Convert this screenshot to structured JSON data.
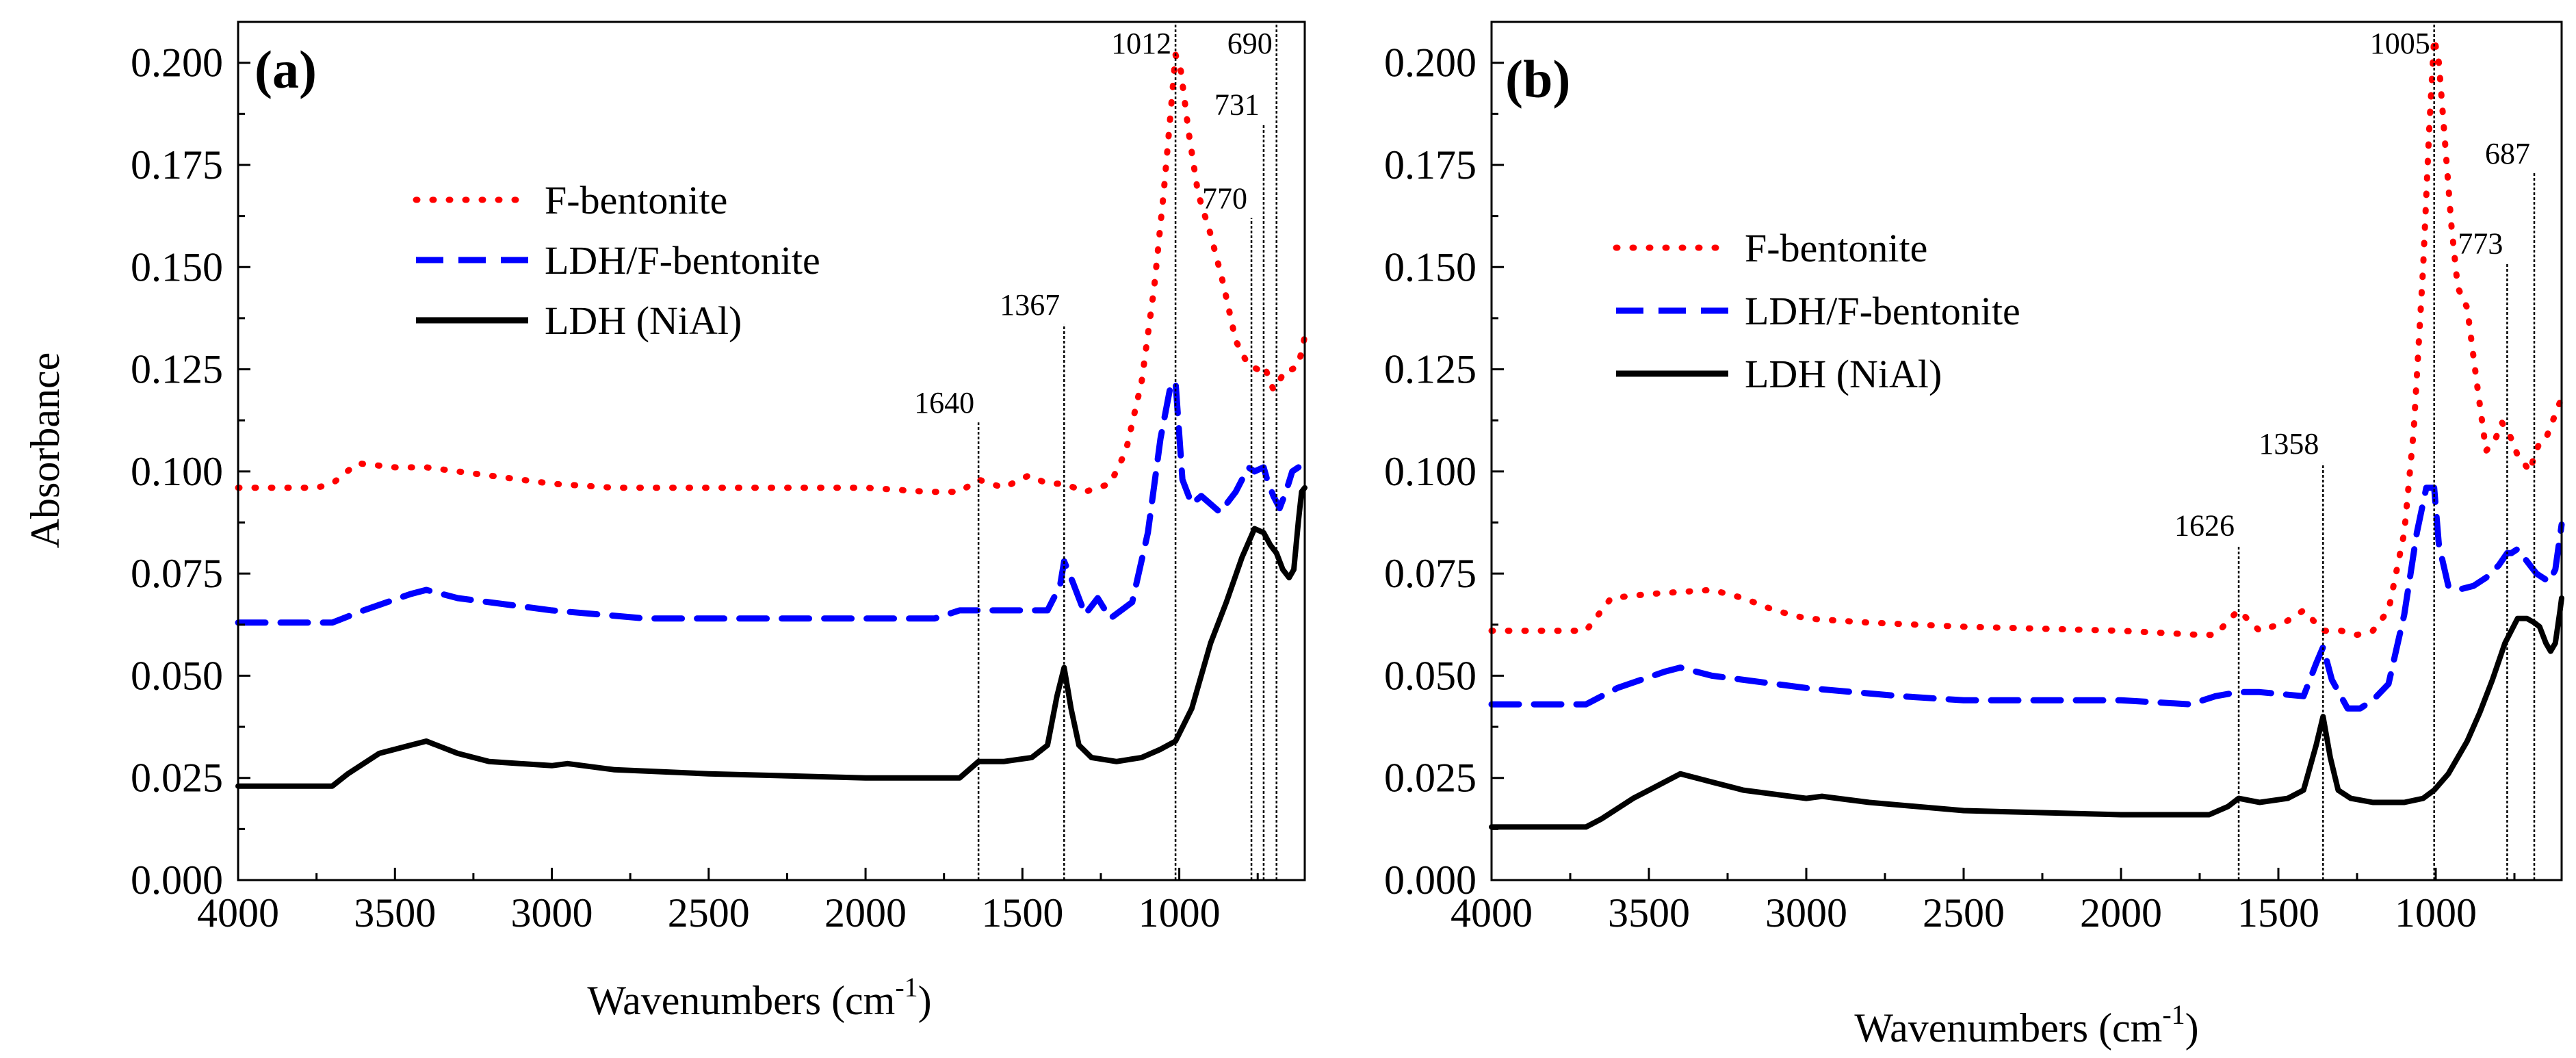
{
  "shared": {
    "y_label": "Absorbance",
    "x_label_main": "Wavenumbers (cm",
    "x_label_sup": "-1",
    "x_label_end": ")",
    "x_ticks": [
      "4000",
      "3500",
      "3000",
      "2500",
      "2000",
      "1500",
      "1000"
    ],
    "y_ticks": [
      "0.000",
      "0.025",
      "0.050",
      "0.075",
      "0.100",
      "0.125",
      "0.150",
      "0.175",
      "0.200"
    ],
    "legend": [
      {
        "label": "F-bentonite",
        "color": "#ff0000",
        "style": "dotted"
      },
      {
        "label": "LDH/F-bentonite",
        "color": "#0000ff",
        "style": "dashed"
      },
      {
        "label": "LDH (NiAl)",
        "color": "#000000",
        "style": "solid"
      }
    ]
  },
  "chart_data": [
    {
      "type": "line",
      "panel": "(a)",
      "xlabel": "Wavenumbers (cm-1)",
      "ylabel": "Absorbance",
      "xlim": [
        4000,
        600
      ],
      "ylim": [
        0,
        0.21
      ],
      "series": [
        {
          "name": "F-bentonite",
          "color": "#ff0000",
          "style": "dotted",
          "x": [
            4000,
            3750,
            3700,
            3620,
            3500,
            3400,
            3300,
            3200,
            3000,
            2800,
            2600,
            2400,
            2200,
            2000,
            1800,
            1700,
            1640,
            1560,
            1480,
            1420,
            1367,
            1300,
            1220,
            1170,
            1120,
            1080,
            1050,
            1025,
            1012,
            995,
            970,
            940,
            900,
            860,
            820,
            780,
            750,
            731,
            720,
            700,
            690,
            660,
            640,
            620,
            600
          ],
          "y": [
            0.096,
            0.096,
            0.097,
            0.102,
            0.101,
            0.101,
            0.1,
            0.099,
            0.097,
            0.096,
            0.096,
            0.096,
            0.096,
            0.096,
            0.095,
            0.095,
            0.098,
            0.096,
            0.099,
            0.097,
            0.097,
            0.095,
            0.097,
            0.105,
            0.122,
            0.145,
            0.168,
            0.19,
            0.202,
            0.198,
            0.183,
            0.168,
            0.158,
            0.146,
            0.132,
            0.126,
            0.125,
            0.126,
            0.124,
            0.12,
            0.121,
            0.125,
            0.125,
            0.126,
            0.133
          ]
        },
        {
          "name": "LDH/F-bentonite",
          "color": "#0000ff",
          "style": "dashed",
          "x": [
            4000,
            3700,
            3600,
            3450,
            3400,
            3300,
            3000,
            2700,
            2500,
            2000,
            1780,
            1700,
            1640,
            1560,
            1420,
            1380,
            1367,
            1340,
            1300,
            1260,
            1220,
            1150,
            1100,
            1060,
            1030,
            1012,
            990,
            960,
            930,
            870,
            820,
            780,
            760,
            731,
            720,
            700,
            680,
            660,
            640,
            620
          ],
          "y": [
            0.063,
            0.063,
            0.066,
            0.07,
            0.071,
            0.069,
            0.066,
            0.064,
            0.064,
            0.064,
            0.064,
            0.066,
            0.066,
            0.066,
            0.066,
            0.072,
            0.078,
            0.073,
            0.065,
            0.069,
            0.064,
            0.068,
            0.085,
            0.108,
            0.12,
            0.122,
            0.098,
            0.092,
            0.094,
            0.09,
            0.095,
            0.101,
            0.1,
            0.101,
            0.098,
            0.094,
            0.091,
            0.095,
            0.1,
            0.101
          ]
        },
        {
          "name": "LDH (NiAl)",
          "color": "#000000",
          "style": "solid",
          "x": [
            4000,
            3700,
            3650,
            3550,
            3450,
            3400,
            3300,
            3200,
            3000,
            2950,
            2900,
            2800,
            2500,
            2000,
            1800,
            1700,
            1640,
            1560,
            1470,
            1420,
            1390,
            1367,
            1345,
            1320,
            1280,
            1200,
            1120,
            1060,
            1012,
            960,
            900,
            850,
            800,
            760,
            731,
            710,
            690,
            670,
            650,
            635,
            620,
            610,
            600
          ],
          "y": [
            0.023,
            0.023,
            0.026,
            0.031,
            0.033,
            0.034,
            0.031,
            0.029,
            0.028,
            0.0285,
            0.028,
            0.027,
            0.026,
            0.025,
            0.025,
            0.025,
            0.029,
            0.029,
            0.03,
            0.033,
            0.045,
            0.052,
            0.042,
            0.033,
            0.03,
            0.029,
            0.03,
            0.032,
            0.034,
            0.042,
            0.058,
            0.068,
            0.079,
            0.086,
            0.085,
            0.082,
            0.08,
            0.076,
            0.074,
            0.076,
            0.088,
            0.095,
            0.096
          ]
        }
      ],
      "peaks": [
        {
          "label": "1640",
          "x": 1640,
          "y_top": 0.112
        },
        {
          "label": "1367",
          "x": 1367,
          "y_top": 0.136
        },
        {
          "label": "1012",
          "x": 1012,
          "y_top": 0.21
        },
        {
          "label": "770",
          "x": 770,
          "y_top": 0.162
        },
        {
          "label": "731",
          "x": 731,
          "y_top": 0.185
        },
        {
          "label": "690",
          "x": 690,
          "y_top": 0.21
        }
      ]
    },
    {
      "type": "line",
      "panel": "(b)",
      "xlabel": "Wavenumbers (cm-1)",
      "ylabel": "Absorbance",
      "xlim": [
        4000,
        600
      ],
      "ylim": [
        0,
        0.21
      ],
      "series": [
        {
          "name": "F-bentonite",
          "color": "#ff0000",
          "style": "dotted",
          "x": [
            4000,
            3700,
            3620,
            3500,
            3300,
            3200,
            3100,
            3000,
            2800,
            2500,
            2000,
            1750,
            1700,
            1640,
            1626,
            1560,
            1480,
            1420,
            1358,
            1300,
            1250,
            1200,
            1150,
            1100,
            1070,
            1040,
            1020,
            1005,
            990,
            970,
            950,
            930,
            900,
            870,
            840,
            810,
            790,
            773,
            760,
            740,
            720,
            700,
            687,
            670,
            650,
            630,
            610,
            600
          ],
          "y": [
            0.061,
            0.061,
            0.069,
            0.07,
            0.071,
            0.069,
            0.066,
            0.064,
            0.063,
            0.062,
            0.061,
            0.06,
            0.06,
            0.065,
            0.066,
            0.061,
            0.063,
            0.066,
            0.061,
            0.061,
            0.06,
            0.061,
            0.066,
            0.085,
            0.11,
            0.15,
            0.185,
            0.206,
            0.2,
            0.18,
            0.16,
            0.145,
            0.14,
            0.122,
            0.105,
            0.108,
            0.112,
            0.11,
            0.108,
            0.104,
            0.102,
            0.1,
            0.104,
            0.107,
            0.108,
            0.112,
            0.116,
            0.118
          ]
        },
        {
          "name": "LDH/F-bentonite",
          "color": "#0000ff",
          "style": "dashed",
          "x": [
            4000,
            3700,
            3600,
            3450,
            3400,
            3300,
            3000,
            2700,
            2500,
            2000,
            1780,
            1700,
            1626,
            1560,
            1420,
            1380,
            1358,
            1330,
            1280,
            1240,
            1200,
            1150,
            1100,
            1060,
            1030,
            1005,
            990,
            960,
            930,
            880,
            840,
            800,
            773,
            760,
            740,
            720,
            700,
            680,
            660,
            640,
            620,
            600
          ],
          "y": [
            0.043,
            0.043,
            0.047,
            0.051,
            0.052,
            0.05,
            0.047,
            0.045,
            0.044,
            0.044,
            0.043,
            0.045,
            0.046,
            0.046,
            0.045,
            0.053,
            0.057,
            0.049,
            0.042,
            0.042,
            0.044,
            0.048,
            0.065,
            0.085,
            0.096,
            0.096,
            0.082,
            0.072,
            0.071,
            0.072,
            0.074,
            0.077,
            0.08,
            0.08,
            0.081,
            0.079,
            0.077,
            0.075,
            0.074,
            0.073,
            0.076,
            0.087
          ]
        },
        {
          "name": "LDH (NiAl)",
          "color": "#000000",
          "style": "solid",
          "x": [
            4000,
            3700,
            3650,
            3550,
            3450,
            3400,
            3300,
            3200,
            3000,
            2950,
            2900,
            2800,
            2500,
            2000,
            1800,
            1720,
            1660,
            1626,
            1560,
            1470,
            1420,
            1380,
            1358,
            1335,
            1310,
            1270,
            1200,
            1100,
            1040,
            1005,
            960,
            900,
            860,
            820,
            780,
            740,
            710,
            687,
            670,
            650,
            635,
            620,
            605,
            600
          ],
          "y": [
            0.013,
            0.013,
            0.015,
            0.02,
            0.024,
            0.026,
            0.024,
            0.022,
            0.02,
            0.0205,
            0.02,
            0.019,
            0.017,
            0.016,
            0.016,
            0.016,
            0.018,
            0.02,
            0.019,
            0.02,
            0.022,
            0.033,
            0.04,
            0.03,
            0.022,
            0.02,
            0.019,
            0.019,
            0.02,
            0.022,
            0.026,
            0.034,
            0.041,
            0.049,
            0.058,
            0.064,
            0.064,
            0.063,
            0.062,
            0.058,
            0.056,
            0.058,
            0.066,
            0.069
          ]
        }
      ],
      "peaks": [
        {
          "label": "1626",
          "x": 1626,
          "y_top": 0.082
        },
        {
          "label": "1358",
          "x": 1358,
          "y_top": 0.102
        },
        {
          "label": "1005",
          "x": 1005,
          "y_top": 0.21
        },
        {
          "label": "773",
          "x": 773,
          "y_top": 0.151
        },
        {
          "label": "687",
          "x": 687,
          "y_top": 0.173
        }
      ]
    }
  ]
}
